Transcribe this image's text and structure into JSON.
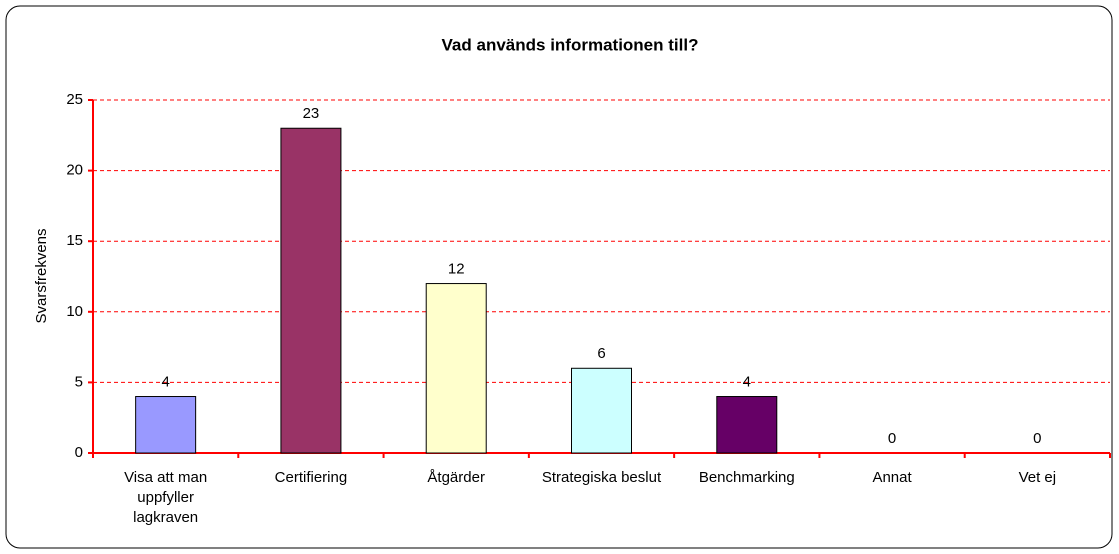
{
  "chart_data": {
    "type": "bar",
    "title": "Vad används informationen till?",
    "y_label": "Svarsfrekvens",
    "categories": [
      "Visa att man uppfyller lagkraven",
      "Certifiering",
      "Åtgärder",
      "Strategiska beslut",
      "Benchmarking",
      "Annat",
      "Vet ej"
    ],
    "values": [
      4,
      23,
      12,
      6,
      4,
      0,
      0
    ],
    "colors": [
      "#9999ff",
      "#993366",
      "#ffffcc",
      "#ccffff",
      "#660066",
      "#808080",
      "#808080"
    ],
    "ylim": [
      0,
      25
    ],
    "yticks": [
      0,
      5,
      10,
      15,
      20,
      25
    ],
    "grid": true
  }
}
